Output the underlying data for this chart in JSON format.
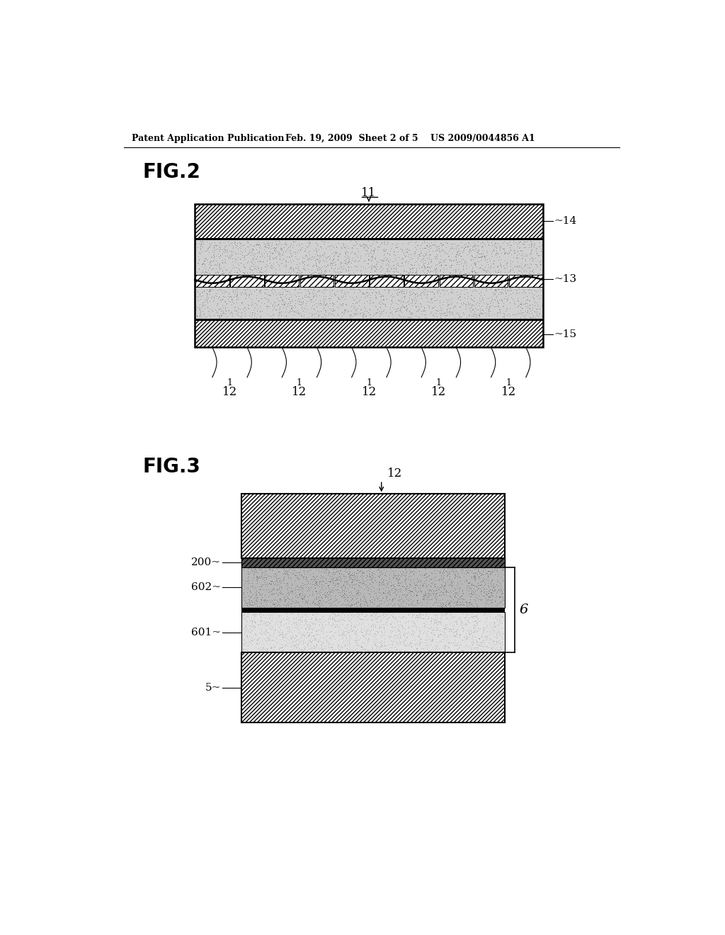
{
  "bg_color": "#ffffff",
  "header_text": "Patent Application Publication",
  "header_date": "Feb. 19, 2009  Sheet 2 of 5",
  "header_patent": "US 2009/0044856 A1",
  "fig2_label": "FIG.2",
  "fig3_label": "FIG.3",
  "label_11": "11",
  "label_12": "12",
  "label_13": "13",
  "label_14": "14",
  "label_15": "15",
  "label_200": "200",
  "label_602": "602",
  "label_601": "601",
  "label_6": "6",
  "label_5": "5"
}
